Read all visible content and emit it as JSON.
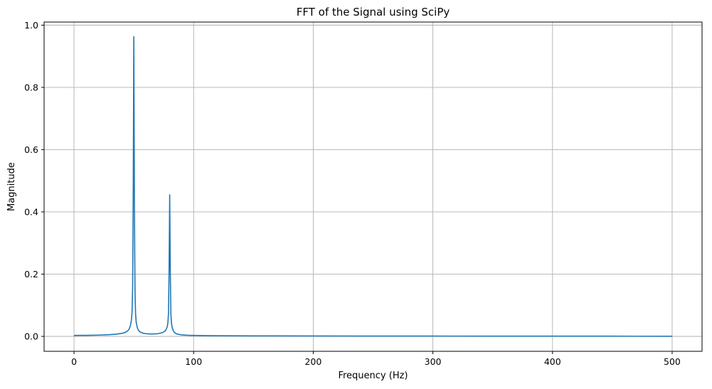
{
  "chart_data": {
    "type": "line",
    "title": "FFT of the Signal using SciPy",
    "xlabel": "Frequency (Hz)",
    "ylabel": "Magnitude",
    "xlim": [
      -25,
      525
    ],
    "ylim": [
      -0.048,
      1.01
    ],
    "xticks": [
      0,
      100,
      200,
      300,
      400,
      500
    ],
    "yticks": [
      0.0,
      0.2,
      0.4,
      0.6,
      0.8,
      1.0
    ],
    "xtick_labels": [
      "0",
      "100",
      "200",
      "300",
      "400",
      "500"
    ],
    "ytick_labels": [
      "0.0",
      "0.2",
      "0.4",
      "0.6",
      "0.8",
      "1.0"
    ],
    "grid": true,
    "series": [
      {
        "color": "#1f77b4",
        "x": [
          0,
          10,
          20,
          30,
          35,
          40,
          43,
          45,
          46,
          47,
          48,
          48.5,
          49,
          49.5,
          50,
          50.5,
          51,
          51.5,
          52,
          53,
          54,
          55,
          57,
          60,
          65,
          70,
          74,
          76,
          77,
          78,
          78.5,
          79,
          79.5,
          80,
          80.5,
          81,
          81.5,
          82,
          83,
          84,
          86,
          90,
          95,
          100,
          110,
          120,
          150,
          200,
          250,
          300,
          350,
          400,
          450,
          500
        ],
        "y": [
          0.003,
          0.0033,
          0.004,
          0.0055,
          0.007,
          0.0095,
          0.013,
          0.018,
          0.023,
          0.032,
          0.052,
          0.075,
          0.15,
          0.45,
          0.963,
          0.42,
          0.14,
          0.07,
          0.045,
          0.027,
          0.019,
          0.015,
          0.011,
          0.0085,
          0.0075,
          0.0085,
          0.012,
          0.017,
          0.022,
          0.032,
          0.045,
          0.075,
          0.22,
          0.455,
          0.21,
          0.07,
          0.042,
          0.03,
          0.018,
          0.012,
          0.0075,
          0.0048,
          0.0036,
          0.003,
          0.0025,
          0.0021,
          0.0016,
          0.0012,
          0.001,
          0.0009,
          0.0008,
          0.0007,
          0.0006,
          0.0005
        ]
      }
    ]
  }
}
